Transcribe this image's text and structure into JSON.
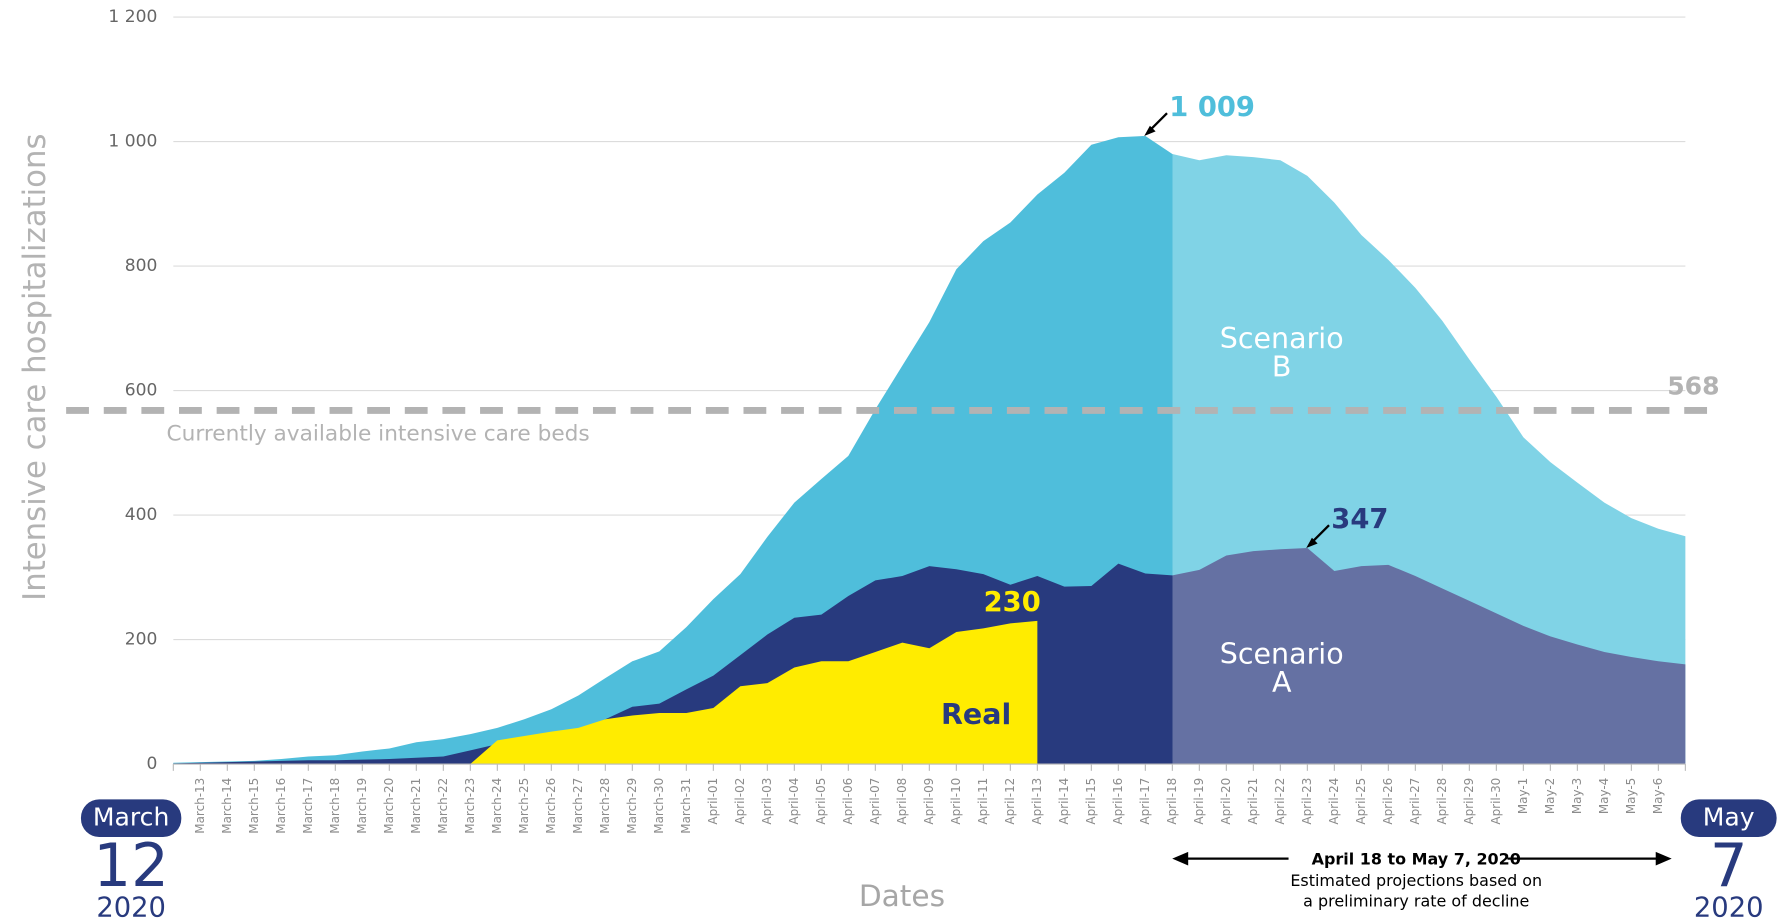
{
  "chart_data": {
    "type": "area",
    "ylabel": "Intensive care hospitalizations",
    "xlabel": "Dates",
    "ylim": [
      0,
      1200
    ],
    "yticks": [
      0,
      200,
      400,
      600,
      800,
      {
        "value": 1000,
        "label": "1 000"
      },
      {
        "value": 1200,
        "label": "1 200"
      }
    ],
    "grid": true,
    "categories": [
      null,
      "March-13",
      "March-14",
      "March-15",
      "March-16",
      "March-17",
      "March-18",
      "March-19",
      "March-20",
      "March-21",
      "March-22",
      "March-23",
      "March-24",
      "March-25",
      "March-26",
      "March-27",
      "March-28",
      "March-29",
      "March-30",
      "March-31",
      "April-01",
      "April-02",
      "April-03",
      "April-04",
      "April-05",
      "April-06",
      "April-07",
      "April-08",
      "April-09",
      "April-10",
      "April-11",
      "April-12",
      "April-13",
      "April-14",
      "April-15",
      "April-16",
      "April-17",
      "April-18",
      "April-19",
      "April-20",
      "April-21",
      "April-22",
      "April-23",
      "April-24",
      "April-25",
      "April-26",
      "April-27",
      "April-28",
      "April-29",
      "April-30",
      "May-1",
      "May-2",
      "May-3",
      "May-4",
      "May-5",
      "May-6",
      null
    ],
    "projection_start": "April-18",
    "series": [
      {
        "name": "Scenario B",
        "color": "#4fbedb",
        "projection_color": "#80d3e6",
        "values": [
          2,
          3,
          4,
          5,
          8,
          12,
          14,
          20,
          25,
          35,
          40,
          48,
          58,
          72,
          88,
          110,
          138,
          165,
          181,
          220,
          265,
          305,
          365,
          420,
          458,
          495,
          570,
          640,
          710,
          795,
          840,
          870,
          915,
          950,
          995,
          1007,
          1009,
          980,
          970,
          978,
          975,
          970,
          945,
          902,
          850,
          810,
          765,
          712,
          650,
          590,
          525,
          485,
          452,
          420,
          395,
          378,
          366
        ]
      },
      {
        "name": "Scenario A",
        "color": "#283a7e",
        "projection_color": "#6571a3",
        "values": [
          1,
          2,
          3,
          4,
          5,
          6,
          6,
          7,
          8,
          10,
          12,
          22,
          32,
          38,
          45,
          55,
          72,
          92,
          97,
          120,
          142,
          175,
          208,
          235,
          240,
          270,
          295,
          302,
          318,
          313,
          305,
          288,
          302,
          285,
          286,
          322,
          306,
          303,
          312,
          335,
          342,
          345,
          347,
          310,
          318,
          320,
          302,
          282,
          262,
          242,
          222,
          205,
          192,
          180,
          172,
          165,
          160
        ]
      },
      {
        "name": "Real",
        "color": "#ffec00",
        "projection_color": "#ffec00",
        "values": [
          null,
          null,
          null,
          null,
          null,
          null,
          null,
          null,
          null,
          null,
          null,
          0,
          38,
          45,
          52,
          58,
          72,
          78,
          82,
          82,
          90,
          125,
          130,
          155,
          165,
          165,
          180,
          195,
          186,
          212,
          218,
          226,
          230,
          null,
          null,
          null,
          null,
          null,
          null,
          null,
          null,
          null,
          null,
          null,
          null,
          null,
          null,
          null,
          null,
          null,
          null,
          null,
          null,
          null,
          null,
          null,
          null
        ]
      }
    ],
    "area_labels": [
      {
        "lines": [
          "Scenario",
          "B"
        ],
        "color": "#ffffff"
      },
      {
        "lines": [
          "Scenario",
          "A"
        ],
        "color": "#ffffff"
      },
      {
        "lines": [
          "Real"
        ],
        "color": "#283a7e"
      }
    ],
    "annotations": [
      {
        "text": "1 009",
        "x": "April-17",
        "y": 1009,
        "color": "#4fbedb"
      },
      {
        "text": "347",
        "x": "April-23",
        "y": 347,
        "color": "#283a7e"
      },
      {
        "text": "230",
        "x": "April-13",
        "y": 230,
        "color": "#ffec00"
      }
    ],
    "threshold": {
      "value": 568,
      "label": "Currently available intensive care beds",
      "color": "#b3b3b3"
    },
    "start_badge": {
      "month": "March",
      "day": "12",
      "year": "2020"
    },
    "end_badge": {
      "month": "May",
      "day": "7",
      "year": "2020"
    },
    "range_note": {
      "title": "April 18 to May 7, 2020",
      "lines": [
        "Estimated projections based on",
        "a preliminary rate of decline"
      ]
    }
  }
}
